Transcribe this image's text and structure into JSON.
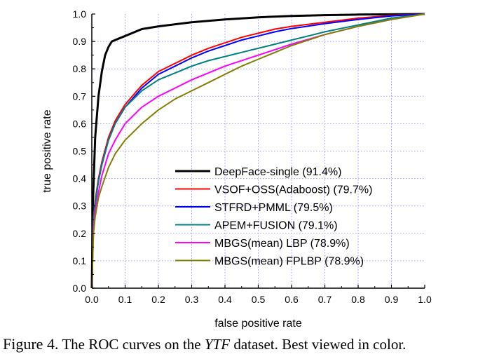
{
  "chart_data": {
    "type": "line",
    "xlabel": "false positive rate",
    "ylabel": "true positive rate",
    "xlim": [
      0.0,
      1.0
    ],
    "ylim": [
      0.0,
      1.0
    ],
    "x_ticks": [
      "0.0",
      "0.1",
      "0.2",
      "0.3",
      "0.4",
      "0.5",
      "0.6",
      "0.7",
      "0.8",
      "0.9",
      "1.0"
    ],
    "y_ticks": [
      "0.0",
      "0.1",
      "0.2",
      "0.3",
      "0.4",
      "0.5",
      "0.6",
      "0.7",
      "0.8",
      "0.9",
      "1.0"
    ],
    "grid": true,
    "legend_position": "bottom-right",
    "series": [
      {
        "name": "DeepFace-single (91.4%)",
        "color": "#000000",
        "x": [
          0.0,
          0.003,
          0.01,
          0.02,
          0.03,
          0.04,
          0.05,
          0.06,
          0.08,
          0.1,
          0.15,
          0.2,
          0.3,
          0.4,
          0.5,
          0.6,
          0.7,
          0.8,
          0.9,
          1.0
        ],
        "y": [
          0.0,
          0.3,
          0.55,
          0.7,
          0.79,
          0.85,
          0.88,
          0.9,
          0.91,
          0.92,
          0.945,
          0.955,
          0.97,
          0.98,
          0.988,
          0.993,
          0.996,
          0.998,
          0.999,
          1.0
        ]
      },
      {
        "name": "VSOF+OSS(Adaboost) (79.7%)",
        "color": "#ff0000",
        "x": [
          0.0,
          0.005,
          0.01,
          0.02,
          0.03,
          0.05,
          0.07,
          0.1,
          0.15,
          0.2,
          0.25,
          0.3,
          0.35,
          0.4,
          0.45,
          0.5,
          0.55,
          0.6,
          0.7,
          0.8,
          0.9,
          1.0
        ],
        "y": [
          0.0,
          0.26,
          0.32,
          0.4,
          0.46,
          0.55,
          0.61,
          0.67,
          0.74,
          0.79,
          0.82,
          0.85,
          0.875,
          0.895,
          0.915,
          0.93,
          0.945,
          0.955,
          0.97,
          0.985,
          0.995,
          1.0
        ]
      },
      {
        "name": "STFRD+PMML (79.5%)",
        "color": "#0000ff",
        "x": [
          0.0,
          0.005,
          0.01,
          0.02,
          0.03,
          0.05,
          0.07,
          0.1,
          0.15,
          0.2,
          0.25,
          0.3,
          0.35,
          0.4,
          0.45,
          0.5,
          0.55,
          0.6,
          0.7,
          0.8,
          0.9,
          1.0
        ],
        "y": [
          0.0,
          0.25,
          0.31,
          0.39,
          0.45,
          0.54,
          0.6,
          0.66,
          0.73,
          0.78,
          0.81,
          0.84,
          0.865,
          0.885,
          0.905,
          0.92,
          0.935,
          0.947,
          0.965,
          0.98,
          0.993,
          1.0
        ]
      },
      {
        "name": "APEM+FUSION (79.1%)",
        "color": "#008080",
        "x": [
          0.0,
          0.005,
          0.01,
          0.02,
          0.03,
          0.05,
          0.07,
          0.1,
          0.15,
          0.2,
          0.25,
          0.3,
          0.35,
          0.4,
          0.45,
          0.5,
          0.55,
          0.6,
          0.65,
          0.7,
          0.8,
          0.9,
          1.0
        ],
        "y": [
          0.0,
          0.25,
          0.31,
          0.39,
          0.45,
          0.54,
          0.6,
          0.66,
          0.72,
          0.76,
          0.785,
          0.81,
          0.83,
          0.845,
          0.86,
          0.875,
          0.89,
          0.905,
          0.92,
          0.935,
          0.96,
          0.985,
          1.0
        ]
      },
      {
        "name": "MBGS(mean) LBP (78.9%)",
        "color": "#ff00ff",
        "x": [
          0.0,
          0.005,
          0.01,
          0.02,
          0.03,
          0.05,
          0.07,
          0.1,
          0.15,
          0.2,
          0.25,
          0.3,
          0.35,
          0.4,
          0.5,
          0.6,
          0.7,
          0.8,
          0.9,
          1.0
        ],
        "y": [
          0.0,
          0.22,
          0.28,
          0.35,
          0.41,
          0.49,
          0.54,
          0.6,
          0.66,
          0.7,
          0.73,
          0.76,
          0.785,
          0.81,
          0.85,
          0.89,
          0.925,
          0.955,
          0.98,
          1.0
        ]
      },
      {
        "name": "MBGS(mean) FPLBP (78.9%)",
        "color": "#808000",
        "x": [
          0.0,
          0.005,
          0.01,
          0.02,
          0.03,
          0.05,
          0.07,
          0.1,
          0.15,
          0.2,
          0.25,
          0.3,
          0.35,
          0.4,
          0.45,
          0.5,
          0.6,
          0.7,
          0.8,
          0.9,
          1.0
        ],
        "y": [
          0.0,
          0.2,
          0.26,
          0.33,
          0.37,
          0.44,
          0.49,
          0.54,
          0.6,
          0.65,
          0.69,
          0.72,
          0.75,
          0.78,
          0.81,
          0.835,
          0.885,
          0.925,
          0.955,
          0.98,
          1.0
        ]
      }
    ]
  },
  "caption": {
    "prefix": "Figure 4.",
    "text_before": " The ROC curves on the ",
    "italic": "YTF",
    "text_after": " dataset. Best viewed in color."
  }
}
